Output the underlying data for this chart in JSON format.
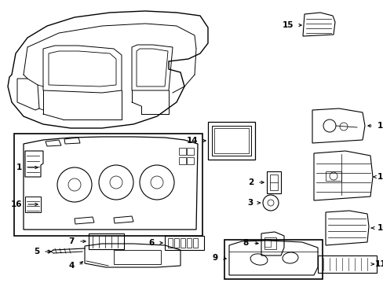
{
  "background_color": "#ffffff",
  "line_color": "#000000",
  "text_color": "#000000",
  "figure_width": 4.89,
  "figure_height": 3.6,
  "dpi": 100,
  "label_font_size": 7.5
}
